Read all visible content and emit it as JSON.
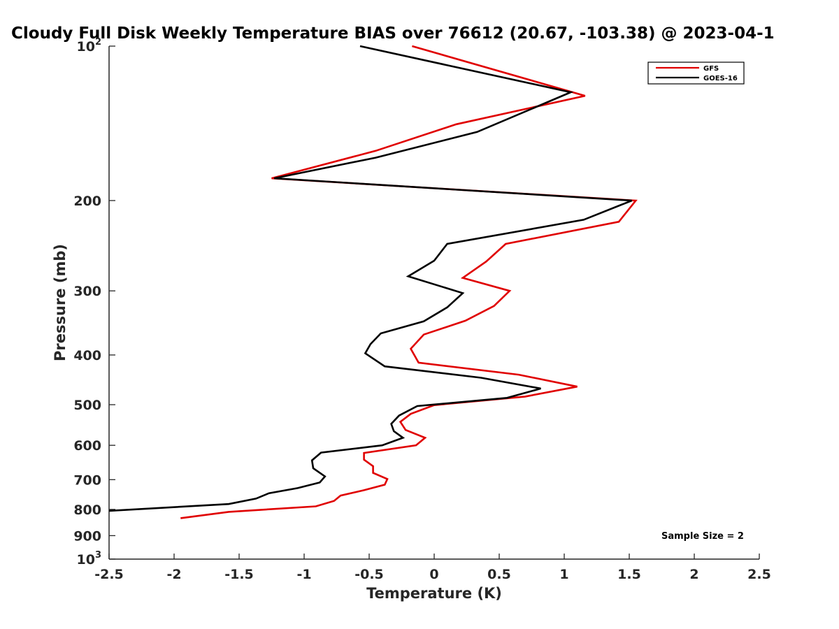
{
  "chart_data": {
    "type": "line",
    "title": "Cloudy Full Disk Weekly Temperature BIAS over 76612 (20.67, -103.38) @ 2023-04-1",
    "xlabel": "Temperature (K)",
    "ylabel": "Pressure (mb)",
    "xlim": [
      -2.5,
      2.5
    ],
    "ylim": [
      100,
      1000
    ],
    "y_scale": "log",
    "y_reversed": true,
    "grid": false,
    "legend_position": "top-right",
    "x_ticks": [
      -2.5,
      -2,
      -1.5,
      -1,
      -0.5,
      0,
      0.5,
      1,
      1.5,
      2,
      2.5
    ],
    "x_tick_labels": [
      "-2.5",
      "-2",
      "-1.5",
      "-1",
      "-0.5",
      "0",
      "0.5",
      "1",
      "1.5",
      "2",
      "2.5"
    ],
    "y_ticks": [
      {
        "value": 100,
        "base": "10",
        "exp": "2"
      },
      {
        "value": 200,
        "label": "200"
      },
      {
        "value": 300,
        "label": "300"
      },
      {
        "value": 400,
        "label": "400"
      },
      {
        "value": 500,
        "label": "500"
      },
      {
        "value": 600,
        "label": "600"
      },
      {
        "value": 700,
        "label": "700"
      },
      {
        "value": 800,
        "label": "800"
      },
      {
        "value": 900,
        "label": "900"
      },
      {
        "value": 1000,
        "base": "10",
        "exp": "3"
      }
    ],
    "annotation": "Sample Size = 2",
    "series": [
      {
        "name": "GFS",
        "color": "#e00000",
        "points": [
          [
            -0.17,
            100
          ],
          [
            1.16,
            125
          ],
          [
            0.17,
            142
          ],
          [
            -0.45,
            160
          ],
          [
            -1.25,
            181
          ],
          [
            1.55,
            200
          ],
          [
            1.42,
            220
          ],
          [
            0.55,
            243
          ],
          [
            0.4,
            263
          ],
          [
            0.22,
            283
          ],
          [
            0.58,
            300
          ],
          [
            0.46,
            321
          ],
          [
            0.24,
            343
          ],
          [
            -0.08,
            365
          ],
          [
            -0.18,
            389
          ],
          [
            -0.12,
            414
          ],
          [
            0.65,
            437
          ],
          [
            1.1,
            461
          ],
          [
            0.7,
            482
          ],
          [
            0.0,
            501
          ],
          [
            -0.18,
            521
          ],
          [
            -0.26,
            540
          ],
          [
            -0.22,
            560
          ],
          [
            -0.07,
            580
          ],
          [
            -0.14,
            600
          ],
          [
            -0.54,
            621
          ],
          [
            -0.54,
            640
          ],
          [
            -0.47,
            659
          ],
          [
            -0.47,
            679
          ],
          [
            -0.36,
            698
          ],
          [
            -0.38,
            716
          ],
          [
            -0.54,
            734
          ],
          [
            -0.72,
            752
          ],
          [
            -0.77,
            770
          ],
          [
            -0.91,
            789
          ],
          [
            -1.58,
            809
          ],
          [
            -1.95,
            832
          ]
        ]
      },
      {
        "name": "GOES-16",
        "color": "#000000",
        "points": [
          [
            -0.57,
            100
          ],
          [
            1.05,
            123
          ],
          [
            0.33,
            147
          ],
          [
            -0.45,
            165
          ],
          [
            -1.23,
            181
          ],
          [
            1.52,
            200
          ],
          [
            1.15,
            218
          ],
          [
            0.1,
            243
          ],
          [
            0.0,
            262
          ],
          [
            -0.2,
            281
          ],
          [
            0.22,
            303
          ],
          [
            0.1,
            323
          ],
          [
            -0.08,
            344
          ],
          [
            -0.41,
            363
          ],
          [
            -0.49,
            381
          ],
          [
            -0.53,
            397
          ],
          [
            -0.38,
            421
          ],
          [
            0.36,
            443
          ],
          [
            0.82,
            465
          ],
          [
            0.56,
            485
          ],
          [
            -0.13,
            503
          ],
          [
            -0.27,
            525
          ],
          [
            -0.33,
            545
          ],
          [
            -0.31,
            563
          ],
          [
            -0.24,
            580
          ],
          [
            -0.4,
            600
          ],
          [
            -0.87,
            620
          ],
          [
            -0.94,
            642
          ],
          [
            -0.93,
            665
          ],
          [
            -0.84,
            690
          ],
          [
            -0.88,
            709
          ],
          [
            -1.05,
            727
          ],
          [
            -1.27,
            744
          ],
          [
            -1.37,
            762
          ],
          [
            -1.58,
            781
          ],
          [
            -2.5,
            805
          ]
        ]
      }
    ]
  }
}
